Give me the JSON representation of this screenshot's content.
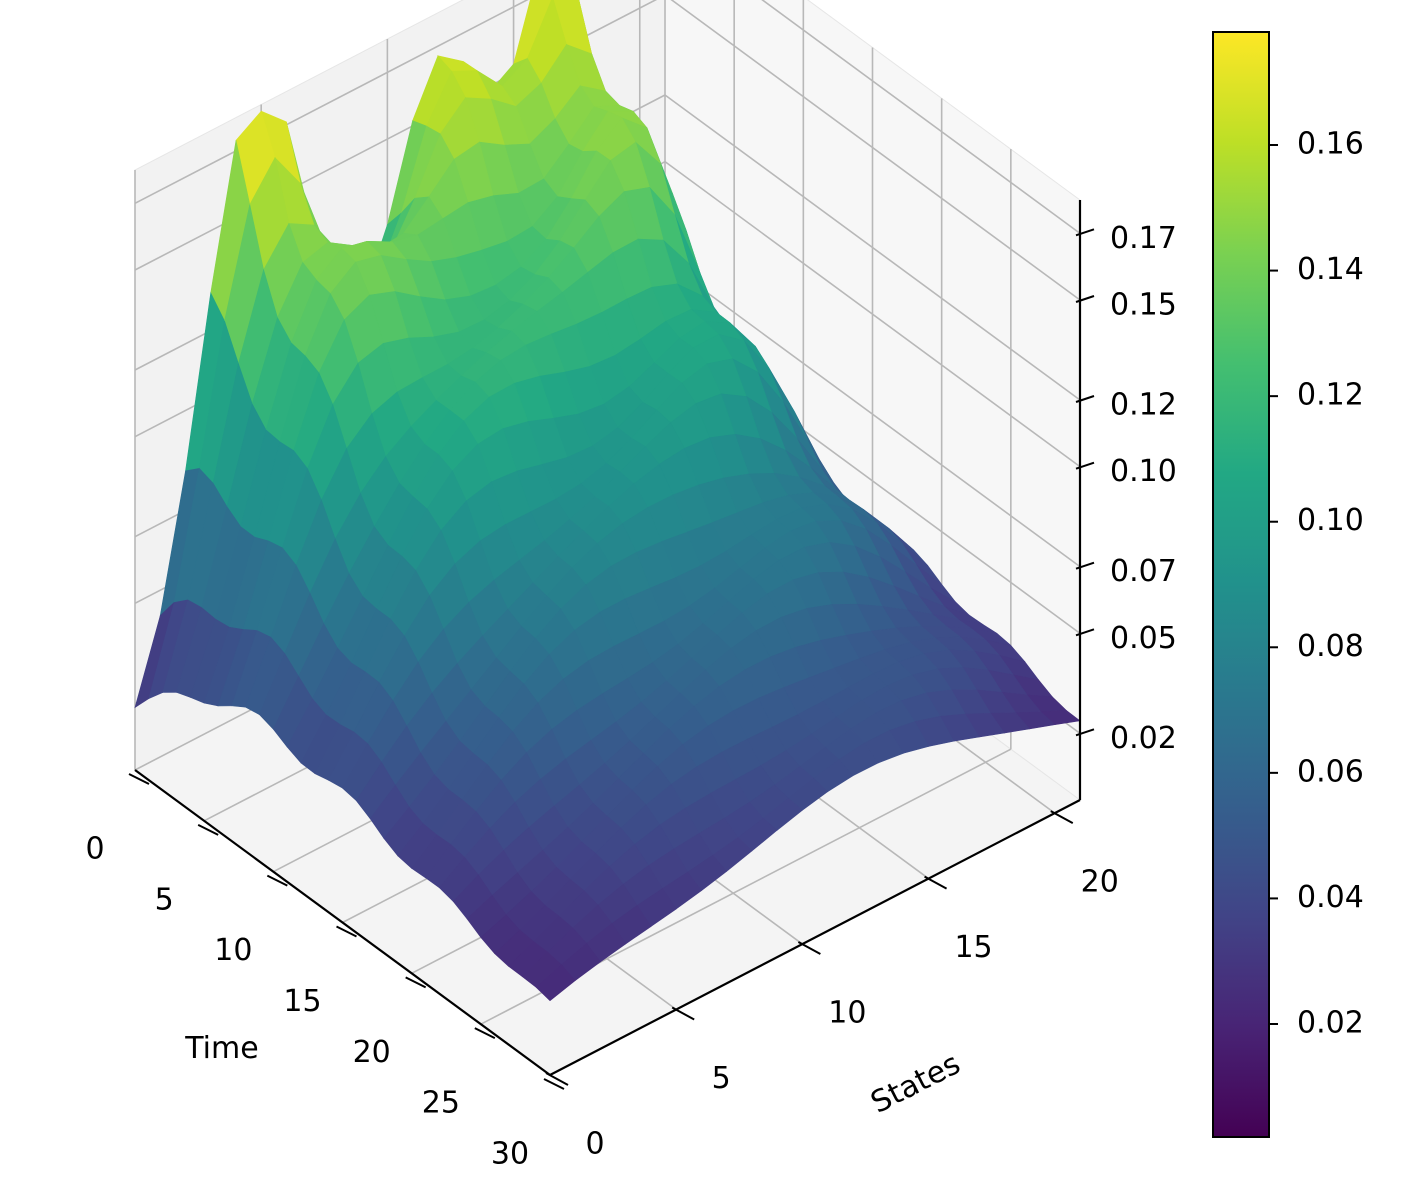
{
  "chart_data": {
    "type": "surface",
    "colormap": "viridis",
    "title": "",
    "xlabel": "Time",
    "ylabel": "States",
    "zlabel": "",
    "x_ticks": [
      0,
      5,
      10,
      15,
      20,
      25,
      30
    ],
    "y_ticks": [
      0,
      5,
      10,
      15,
      20
    ],
    "z_ticks": [
      "0.02",
      "0.05",
      "0.07",
      "0.10",
      "0.12",
      "0.15",
      "0.17"
    ],
    "xlim": [
      0,
      30
    ],
    "ylim": [
      0,
      21
    ],
    "zlim": [
      0,
      0.18
    ],
    "grid": true,
    "colorbar": {
      "ticks": [
        "0.02",
        "0.04",
        "0.06",
        "0.08",
        "0.10",
        "0.12",
        "0.14",
        "0.16"
      ],
      "tick_values": [
        0.02,
        0.04,
        0.06,
        0.08,
        0.1,
        0.12,
        0.14,
        0.16
      ],
      "range": [
        0.002,
        0.178
      ]
    },
    "surface_peaks": [
      {
        "time": 0,
        "state": 5,
        "value": 0.178
      },
      {
        "time": 0,
        "state": 12,
        "value": 0.165
      },
      {
        "time": 0,
        "state": 17,
        "value": 0.158
      }
    ],
    "value_range": [
      0.002,
      0.178
    ]
  }
}
